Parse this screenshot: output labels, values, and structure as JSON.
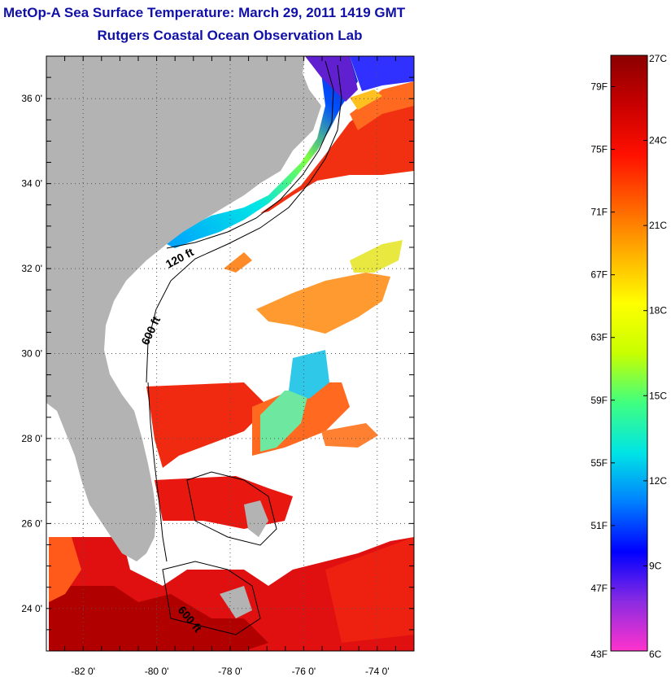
{
  "header": {
    "title_line1": "MetOp-A Sea Surface Temperature:  March 29, 2011 1419 GMT",
    "title_line2": "Rutgers Coastal Ocean Observation Lab"
  },
  "map": {
    "lat_range": [
      23,
      37
    ],
    "lon_range": [
      -83,
      -73
    ],
    "lat_ticks": [
      {
        "value": 24,
        "label": "24 0'"
      },
      {
        "value": 26,
        "label": "26 0'"
      },
      {
        "value": 28,
        "label": "28 0'"
      },
      {
        "value": 30,
        "label": "30 0'"
      },
      {
        "value": 32,
        "label": "32 0'"
      },
      {
        "value": 34,
        "label": "34 0'"
      },
      {
        "value": 36,
        "label": "36 0'"
      }
    ],
    "lon_ticks": [
      {
        "value": -82,
        "label": "-82 0'"
      },
      {
        "value": -80,
        "label": "-80 0'"
      },
      {
        "value": -78,
        "label": "-78 0'"
      },
      {
        "value": -76,
        "label": "-76 0'"
      },
      {
        "value": -74,
        "label": "-74 0'"
      }
    ],
    "contour_labels": [
      {
        "text": "120 ft"
      },
      {
        "text": "600 ft"
      },
      {
        "text": "600 ft"
      }
    ],
    "land_color": "#b3b3b3",
    "no_data_color": "#ffffff",
    "grid": "dotted"
  },
  "colorbar": {
    "range_c": [
      6,
      27
    ],
    "range_f": [
      43,
      81
    ],
    "fahrenheit_labels": [
      "79F",
      "75F",
      "71F",
      "67F",
      "63F",
      "59F",
      "55F",
      "51F",
      "47F",
      "43F"
    ],
    "celsius_labels": [
      "27C",
      "24C",
      "21C",
      "18C",
      "15C",
      "12C",
      "9C",
      "6C"
    ],
    "colormap": [
      "#ff33cc",
      "#8a2be2",
      "#0000ff",
      "#0080ff",
      "#00e5e5",
      "#40ff80",
      "#c8ff00",
      "#ffff00",
      "#ffb000",
      "#ff6000",
      "#ff1000",
      "#c80000",
      "#8b0000"
    ]
  }
}
